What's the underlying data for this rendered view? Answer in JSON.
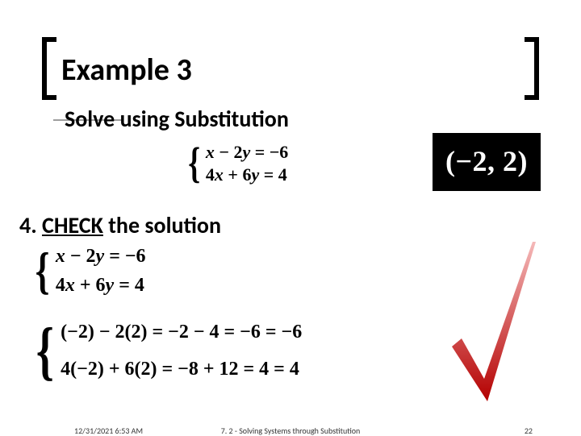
{
  "title": "Example 3",
  "subtitle": "Solve using Substitution",
  "system_top": {
    "eq1_html": "<span class='roman'></span>x <span class='roman'>− 2</span>y <span class='roman'>= −6</span>",
    "eq2_html": "<span class='roman'>4</span>x <span class='roman'>+ 6</span>y <span class='roman'>= 4</span>"
  },
  "answer": "(−2, 2)",
  "step_num": "4.",
  "step_word_underlined": "CHECK",
  "step_rest": " the solution",
  "system_mid": {
    "eq1_html": "x <span class='roman'>− 2</span>y <span class='roman'>= −6</span>",
    "eq2_html": "<span class='roman'>4</span>x <span class='roman'>+ 6</span>y <span class='roman'>= 4</span>"
  },
  "system_bot": {
    "eq1_html": "<span class='roman'>(−2) − 2(2) = −2 − 4 = −6 = −6</span>",
    "eq2_html": "<span class='roman'>4(−2) + 6(2) = −8 + 12 = 4 = 4</span>"
  },
  "checkmark": {
    "gradient_top": "#f5b9b9",
    "gradient_bottom": "#b40000"
  },
  "footer": {
    "date": "12/31/2021 6:53 AM",
    "center": "7. 2 - Solving Systems through Substitution",
    "page": "22"
  }
}
